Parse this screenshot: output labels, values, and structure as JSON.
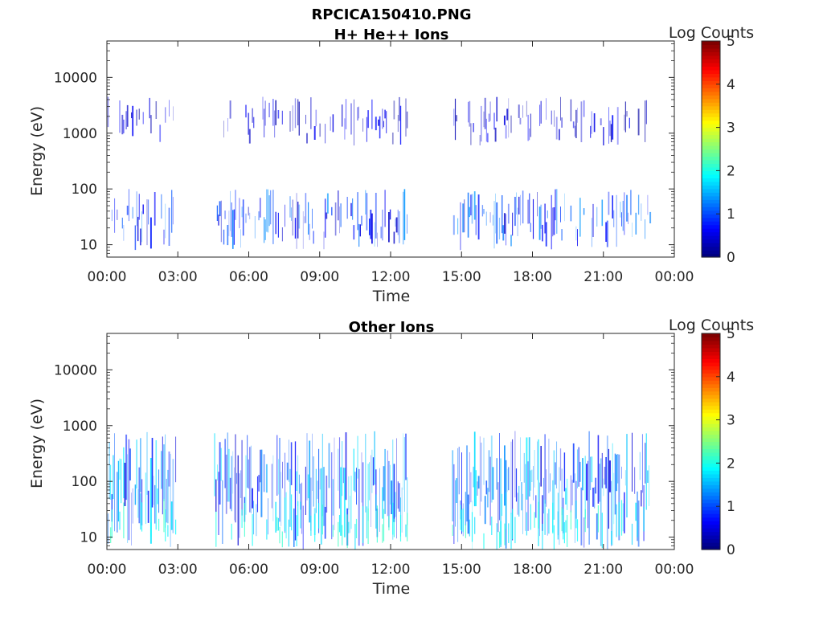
{
  "figure": {
    "title_line1": "RPCICA150410.PNG"
  },
  "chart_data": [
    {
      "type": "heatmap",
      "title": "H+ He++ Ions",
      "xlabel": "Time",
      "ylabel": "Energy (eV)",
      "x_ticks": [
        "00:00",
        "03:00",
        "06:00",
        "09:00",
        "12:00",
        "15:00",
        "18:00",
        "21:00",
        "00:00"
      ],
      "x_tick_hours": [
        0,
        3,
        6,
        9,
        12,
        15,
        18,
        21,
        24
      ],
      "xlim_hours": [
        0,
        24
      ],
      "y_scale": "log",
      "ylim": [
        6,
        45000
      ],
      "y_ticks": [
        10,
        100,
        1000,
        10000
      ],
      "y_tick_labels": [
        "10",
        "100",
        "1000",
        "10000"
      ],
      "colorbar": {
        "label": "Log Counts",
        "range": [
          0,
          5
        ],
        "ticks": [
          "0",
          "1",
          "2",
          "3",
          "4",
          "5"
        ],
        "colormap": "jet"
      },
      "data_gaps_hours": [
        [
          2.95,
          4.5
        ],
        [
          12.75,
          14.6
        ],
        [
          23.0,
          24
        ]
      ],
      "bands": [
        {
          "e_min": 8,
          "e_max": 100,
          "level": 1.0,
          "density": 0.55,
          "note": "low-energy band"
        },
        {
          "e_min": 600,
          "e_max": 4500,
          "level": 0.5,
          "density": 0.35,
          "note": "keV band"
        }
      ]
    },
    {
      "type": "heatmap",
      "title": "Other Ions",
      "xlabel": "Time",
      "ylabel": "Energy (eV)",
      "x_ticks": [
        "00:00",
        "03:00",
        "06:00",
        "09:00",
        "12:00",
        "15:00",
        "18:00",
        "21:00",
        "00:00"
      ],
      "x_tick_hours": [
        0,
        3,
        6,
        9,
        12,
        15,
        18,
        21,
        24
      ],
      "xlim_hours": [
        0,
        24
      ],
      "y_scale": "log",
      "ylim": [
        6,
        45000
      ],
      "y_ticks": [
        10,
        100,
        1000,
        10000
      ],
      "y_tick_labels": [
        "10",
        "100",
        "1000",
        "10000"
      ],
      "colorbar": {
        "label": "Log Counts",
        "range": [
          0,
          5
        ],
        "ticks": [
          "0",
          "1",
          "2",
          "3",
          "4",
          "5"
        ],
        "colormap": "jet"
      },
      "data_gaps_hours": [
        [
          2.95,
          4.5
        ],
        [
          12.75,
          14.6
        ],
        [
          23.0,
          24
        ]
      ],
      "bands": [
        {
          "e_min": 6,
          "e_max": 800,
          "level": 1.3,
          "density": 0.85,
          "note": "broad band, peak near 30-100 eV"
        }
      ]
    }
  ]
}
